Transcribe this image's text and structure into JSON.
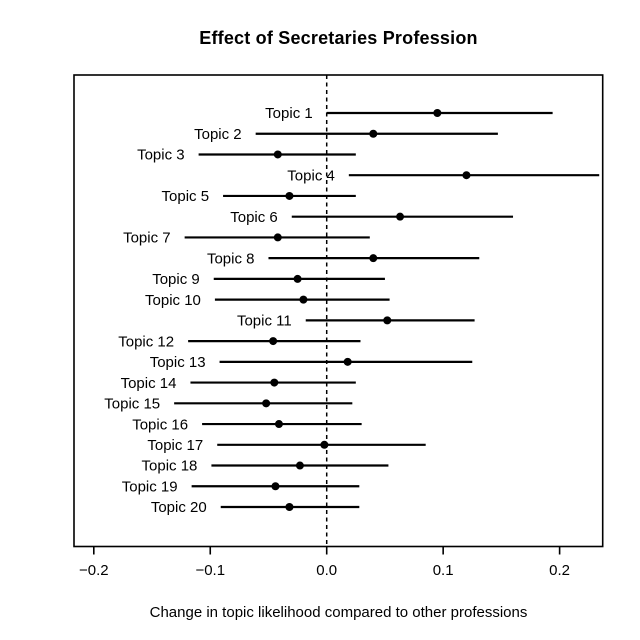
{
  "chart_data": {
    "type": "scatter",
    "variant": "forest-plot-dot-with-ci",
    "title": "Effect of Secretaries Profession",
    "xlabel": "Change in topic likelihood compared to other professions",
    "ylabel": "",
    "xlim": [
      -0.217,
      0.237
    ],
    "x_ticks": [
      -0.2,
      -0.1,
      0.0,
      0.1,
      0.2
    ],
    "x_tick_labels": [
      "−0.2",
      "−0.1",
      "0.0",
      "0.1",
      "0.2"
    ],
    "zero_line": {
      "value": 0.0,
      "style": "dashed"
    },
    "grid": false,
    "legend": "none",
    "colors": {
      "foreground": "#000000",
      "background": "#ffffff"
    },
    "rows": [
      {
        "label": "Topic 1",
        "estimate": 0.095,
        "ci_low": 0.0,
        "ci_high": 0.194
      },
      {
        "label": "Topic 2",
        "estimate": 0.04,
        "ci_low": -0.061,
        "ci_high": 0.147
      },
      {
        "label": "Topic 3",
        "estimate": -0.042,
        "ci_low": -0.11,
        "ci_high": 0.025
      },
      {
        "label": "Topic 4",
        "estimate": 0.12,
        "ci_low": 0.019,
        "ci_high": 0.234
      },
      {
        "label": "Topic 5",
        "estimate": -0.032,
        "ci_low": -0.089,
        "ci_high": 0.025
      },
      {
        "label": "Topic 6",
        "estimate": 0.063,
        "ci_low": -0.03,
        "ci_high": 0.16
      },
      {
        "label": "Topic 7",
        "estimate": -0.042,
        "ci_low": -0.122,
        "ci_high": 0.037
      },
      {
        "label": "Topic 8",
        "estimate": 0.04,
        "ci_low": -0.05,
        "ci_high": 0.131
      },
      {
        "label": "Topic 9",
        "estimate": -0.025,
        "ci_low": -0.097,
        "ci_high": 0.05
      },
      {
        "label": "Topic 10",
        "estimate": -0.02,
        "ci_low": -0.096,
        "ci_high": 0.054
      },
      {
        "label": "Topic 11",
        "estimate": 0.052,
        "ci_low": -0.018,
        "ci_high": 0.127
      },
      {
        "label": "Topic 12",
        "estimate": -0.046,
        "ci_low": -0.119,
        "ci_high": 0.029
      },
      {
        "label": "Topic 13",
        "estimate": 0.018,
        "ci_low": -0.092,
        "ci_high": 0.125
      },
      {
        "label": "Topic 14",
        "estimate": -0.045,
        "ci_low": -0.117,
        "ci_high": 0.025
      },
      {
        "label": "Topic 15",
        "estimate": -0.052,
        "ci_low": -0.131,
        "ci_high": 0.022
      },
      {
        "label": "Topic 16",
        "estimate": -0.041,
        "ci_low": -0.107,
        "ci_high": 0.03
      },
      {
        "label": "Topic 17",
        "estimate": -0.002,
        "ci_low": -0.094,
        "ci_high": 0.085
      },
      {
        "label": "Topic 18",
        "estimate": -0.023,
        "ci_low": -0.099,
        "ci_high": 0.053
      },
      {
        "label": "Topic 19",
        "estimate": -0.044,
        "ci_low": -0.116,
        "ci_high": 0.028
      },
      {
        "label": "Topic 20",
        "estimate": -0.032,
        "ci_low": -0.091,
        "ci_high": 0.028
      }
    ]
  }
}
